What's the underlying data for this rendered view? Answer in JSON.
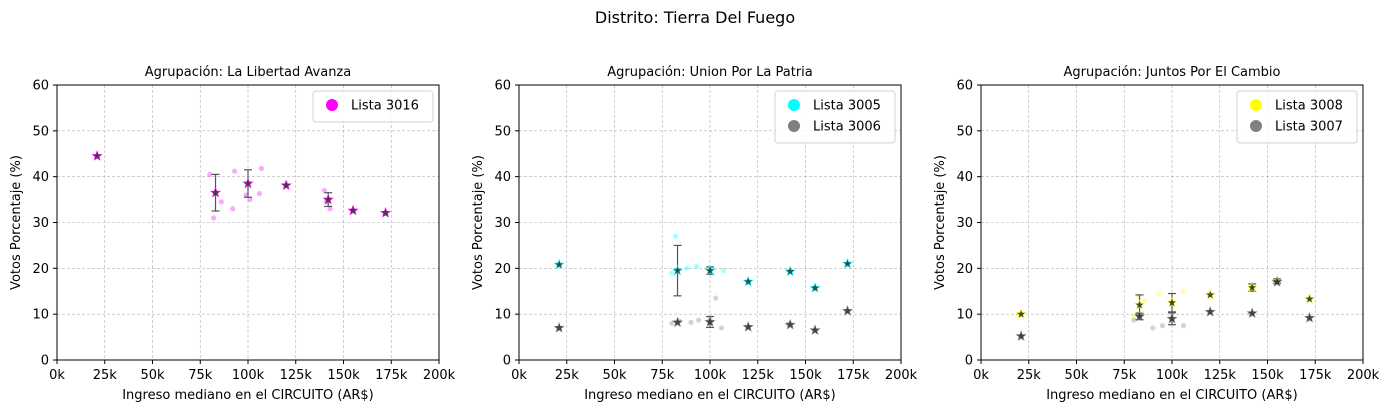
{
  "suptitle": "Distrito: Tierra Del Fuego",
  "chart_data": [
    {
      "type": "scatter",
      "title": "Agrupación: La Libertad Avanza",
      "xlabel": "Ingreso mediano en el CIRCUITO (AR$)",
      "ylabel": "Votos Porcentaje (%)",
      "xlim": [
        0,
        200000
      ],
      "ylim": [
        0,
        60
      ],
      "xticks": [
        0,
        25000,
        50000,
        75000,
        100000,
        125000,
        150000,
        175000,
        200000
      ],
      "xtick_labels": [
        "0k",
        "25k",
        "50k",
        "75k",
        "100k",
        "125k",
        "150k",
        "175k",
        "200k"
      ],
      "yticks": [
        0,
        10,
        20,
        30,
        40,
        50,
        60
      ],
      "ytick_labels": [
        "0",
        "10",
        "20",
        "30",
        "40",
        "50",
        "60"
      ],
      "grid": true,
      "legend_position": "top-right",
      "series": [
        {
          "name": "Lista 3016",
          "color": "#ff00ff",
          "points": [
            [
              21000,
              44.5
            ],
            [
              80000,
              40.5
            ],
            [
              82000,
              31.0
            ],
            [
              86000,
              34.5
            ],
            [
              92000,
              33.0
            ],
            [
              93000,
              41.2
            ],
            [
              99000,
              36.0
            ],
            [
              101000,
              35.0
            ],
            [
              106000,
              36.3
            ],
            [
              107000,
              41.8
            ],
            [
              120000,
              38.3
            ],
            [
              140000,
              37.0
            ],
            [
              141000,
              34.5
            ],
            [
              143000,
              33.0
            ],
            [
              155000,
              32.8
            ],
            [
              172000,
              32.0
            ]
          ],
          "means": [
            [
              21000,
              44.5,
              0
            ],
            [
              83000,
              36.5,
              4.0
            ],
            [
              100000,
              38.5,
              3.0
            ],
            [
              120000,
              38.1,
              0
            ],
            [
              142000,
              35.0,
              1.5
            ],
            [
              155000,
              32.6,
              0
            ],
            [
              172000,
              32.1,
              0
            ]
          ]
        }
      ]
    },
    {
      "type": "scatter",
      "title": "Agrupación: Union Por La Patria",
      "xlabel": "Ingreso mediano en el CIRCUITO (AR$)",
      "ylabel": "Votos Porcentaje (%)",
      "xlim": [
        0,
        200000
      ],
      "ylim": [
        0,
        60
      ],
      "xticks": [
        0,
        25000,
        50000,
        75000,
        100000,
        125000,
        150000,
        175000,
        200000
      ],
      "xtick_labels": [
        "0k",
        "25k",
        "50k",
        "75k",
        "100k",
        "125k",
        "150k",
        "175k",
        "200k"
      ],
      "yticks": [
        0,
        10,
        20,
        30,
        40,
        50,
        60
      ],
      "ytick_labels": [
        "0",
        "10",
        "20",
        "30",
        "40",
        "50",
        "60"
      ],
      "grid": true,
      "legend_position": "top-right",
      "series": [
        {
          "name": "Lista 3005",
          "color": "#00ffff",
          "points": [
            [
              21000,
              20.8
            ],
            [
              80000,
              19.0
            ],
            [
              82000,
              27.0
            ],
            [
              88000,
              20.0
            ],
            [
              93000,
              20.5
            ],
            [
              101000,
              20.0
            ],
            [
              107000,
              19.5
            ],
            [
              120000,
              17.0
            ],
            [
              141000,
              19.5
            ],
            [
              155000,
              15.8
            ],
            [
              172000,
              21.0
            ]
          ],
          "means": [
            [
              21000,
              20.8,
              0
            ],
            [
              83000,
              19.5,
              5.5
            ],
            [
              100000,
              19.5,
              0.8
            ],
            [
              120000,
              17.1,
              0
            ],
            [
              142000,
              19.3,
              0
            ],
            [
              155000,
              15.7,
              0
            ],
            [
              172000,
              21.0,
              0
            ]
          ]
        },
        {
          "name": "Lista 3006",
          "color": "#808080",
          "points": [
            [
              21000,
              7.0
            ],
            [
              80000,
              8.0
            ],
            [
              84000,
              8.5
            ],
            [
              90000,
              8.2
            ],
            [
              94000,
              8.7
            ],
            [
              100000,
              9.0
            ],
            [
              103000,
              13.5
            ],
            [
              106000,
              7.0
            ],
            [
              120000,
              7.2
            ],
            [
              141000,
              7.8
            ],
            [
              155000,
              6.5
            ],
            [
              172000,
              10.7
            ]
          ],
          "means": [
            [
              21000,
              7.0,
              0
            ],
            [
              83000,
              8.2,
              0
            ],
            [
              100000,
              8.3,
              1.2
            ],
            [
              120000,
              7.2,
              0
            ],
            [
              142000,
              7.7,
              0
            ],
            [
              155000,
              6.5,
              0
            ],
            [
              172000,
              10.7,
              0
            ]
          ]
        }
      ]
    },
    {
      "type": "scatter",
      "title": "Agrupación: Juntos Por El Cambio",
      "xlabel": "Ingreso mediano en el CIRCUITO (AR$)",
      "ylabel": "Votos Porcentaje (%)",
      "xlim": [
        0,
        200000
      ],
      "ylim": [
        0,
        60
      ],
      "xticks": [
        0,
        25000,
        50000,
        75000,
        100000,
        125000,
        150000,
        175000,
        200000
      ],
      "xtick_labels": [
        "0k",
        "25k",
        "50k",
        "75k",
        "100k",
        "125k",
        "150k",
        "175k",
        "200k"
      ],
      "yticks": [
        0,
        10,
        20,
        30,
        40,
        50,
        60
      ],
      "ytick_labels": [
        "0",
        "10",
        "20",
        "30",
        "40",
        "50",
        "60"
      ],
      "grid": true,
      "legend_position": "top-right",
      "series": [
        {
          "name": "Lista 3008",
          "color": "#ffff00",
          "points": [
            [
              21000,
              10.0
            ],
            [
              80000,
              9.5
            ],
            [
              82000,
              14.0
            ],
            [
              86000,
              13.0
            ],
            [
              93000,
              14.5
            ],
            [
              100000,
              13.0
            ],
            [
              106000,
              15.0
            ],
            [
              120000,
              14.5
            ],
            [
              141000,
              15.5
            ],
            [
              155000,
              17.5
            ],
            [
              172000,
              13.2
            ]
          ],
          "means": [
            [
              21000,
              10.0,
              0
            ],
            [
              83000,
              12.0,
              2.2
            ],
            [
              100000,
              12.5,
              2.0
            ],
            [
              120000,
              14.2,
              0
            ],
            [
              142000,
              15.8,
              0.8
            ],
            [
              155000,
              17.2,
              0.5
            ],
            [
              172000,
              13.3,
              0
            ]
          ]
        },
        {
          "name": "Lista 3007",
          "color": "#808080",
          "points": [
            [
              21000,
              5.0
            ],
            [
              80000,
              8.7
            ],
            [
              82000,
              10.0
            ],
            [
              90000,
              7.0
            ],
            [
              95000,
              7.5
            ],
            [
              100000,
              10.0
            ],
            [
              106000,
              7.5
            ],
            [
              120000,
              10.5
            ],
            [
              141000,
              10.2
            ],
            [
              155000,
              17.0
            ],
            [
              172000,
              9.0
            ]
          ],
          "means": [
            [
              21000,
              5.2,
              0
            ],
            [
              83000,
              9.5,
              0.7
            ],
            [
              100000,
              9.0,
              1.3
            ],
            [
              120000,
              10.5,
              0
            ],
            [
              142000,
              10.2,
              0
            ],
            [
              155000,
              17.0,
              0
            ],
            [
              172000,
              9.2,
              0
            ]
          ]
        }
      ]
    }
  ]
}
